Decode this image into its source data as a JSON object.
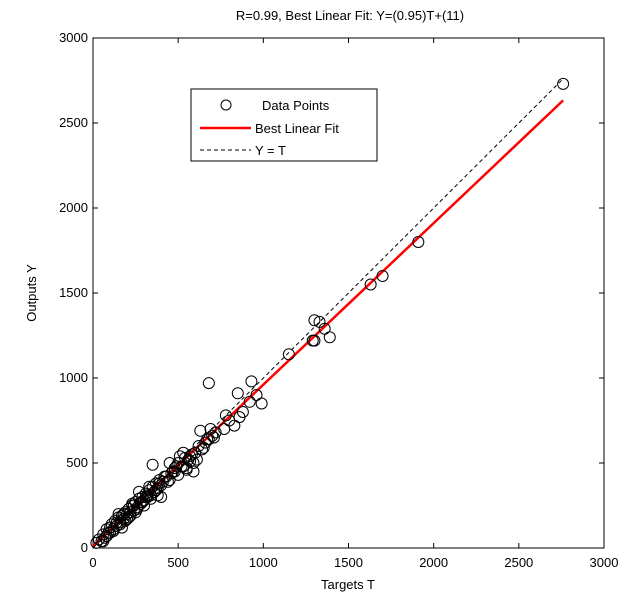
{
  "chart_data": {
    "type": "scatter",
    "title": "R=0.99, Best Linear Fit: Y=(0.95)T+(11)",
    "xlabel": "Targets T",
    "ylabel": "Outputs Y",
    "xlim": [
      0,
      3000
    ],
    "ylim": [
      0,
      3000
    ],
    "xticks": [
      "0",
      "500",
      "1000",
      "1500",
      "2000",
      "2500",
      "3000"
    ],
    "yticks": [
      "0",
      "500",
      "1000",
      "1500",
      "2000",
      "2500",
      "3000"
    ],
    "grid": false,
    "legend": {
      "position": "top-left",
      "entries": [
        "Data Points",
        "Best Linear Fit",
        "Y = T"
      ]
    },
    "series": [
      {
        "name": "Data Points",
        "marker": "open-circle",
        "color": "#000000",
        "x": [
          20,
          35,
          50,
          60,
          70,
          80,
          90,
          100,
          110,
          120,
          130,
          140,
          150,
          160,
          170,
          180,
          190,
          200,
          210,
          220,
          230,
          240,
          250,
          260,
          270,
          280,
          290,
          300,
          310,
          320,
          330,
          340,
          350,
          360,
          370,
          380,
          390,
          400,
          420,
          440,
          460,
          480,
          500,
          520,
          540,
          560,
          580,
          600,
          620,
          640,
          660,
          680,
          700,
          720,
          60,
          80,
          100,
          120,
          140,
          160,
          180,
          200,
          220,
          240,
          260,
          280,
          300,
          320,
          340,
          360,
          380,
          400,
          450,
          480,
          500,
          530,
          550,
          570,
          590,
          610,
          630,
          650,
          670,
          690,
          710,
          150,
          170,
          190,
          210,
          230,
          250,
          270,
          290,
          310,
          330,
          350,
          370,
          390,
          410,
          430,
          450,
          470,
          490,
          510,
          530,
          550,
          570,
          590,
          680,
          770,
          780,
          800,
          830,
          850,
          860,
          880,
          920,
          930,
          960,
          990,
          1150,
          1290,
          1300,
          1300,
          1330,
          1360,
          1390,
          1630,
          1700,
          1910,
          2760
        ],
        "y": [
          30,
          50,
          40,
          80,
          60,
          110,
          90,
          120,
          140,
          100,
          160,
          130,
          180,
          150,
          190,
          170,
          210,
          200,
          230,
          190,
          250,
          220,
          270,
          240,
          290,
          260,
          300,
          280,
          320,
          300,
          340,
          310,
          360,
          330,
          380,
          350,
          400,
          370,
          420,
          390,
          440,
          470,
          500,
          480,
          530,
          520,
          550,
          560,
          600,
          580,
          620,
          640,
          660,
          680,
          40,
          70,
          90,
          110,
          150,
          140,
          200,
          170,
          210,
          250,
          230,
          270,
          250,
          310,
          290,
          330,
          310,
          300,
          400,
          450,
          430,
          480,
          460,
          540,
          500,
          520,
          690,
          590,
          640,
          700,
          650,
          200,
          120,
          160,
          180,
          260,
          210,
          330,
          270,
          300,
          360,
          490,
          340,
          380,
          390,
          420,
          500,
          450,
          480,
          540,
          560,
          470,
          510,
          450,
          970,
          700,
          780,
          750,
          720,
          910,
          770,
          800,
          860,
          980,
          900,
          850,
          1140,
          1220,
          1340,
          1220,
          1330,
          1290,
          1240,
          1550,
          1600,
          1800,
          2730
        ]
      },
      {
        "name": "Best Linear Fit",
        "color": "#ff0000",
        "x": [
          0,
          2760
        ],
        "y": [
          11,
          2633
        ]
      },
      {
        "name": "Y = T",
        "color": "#000000",
        "dashed": true,
        "x": [
          0,
          2760
        ],
        "y": [
          0,
          2760
        ]
      }
    ]
  }
}
